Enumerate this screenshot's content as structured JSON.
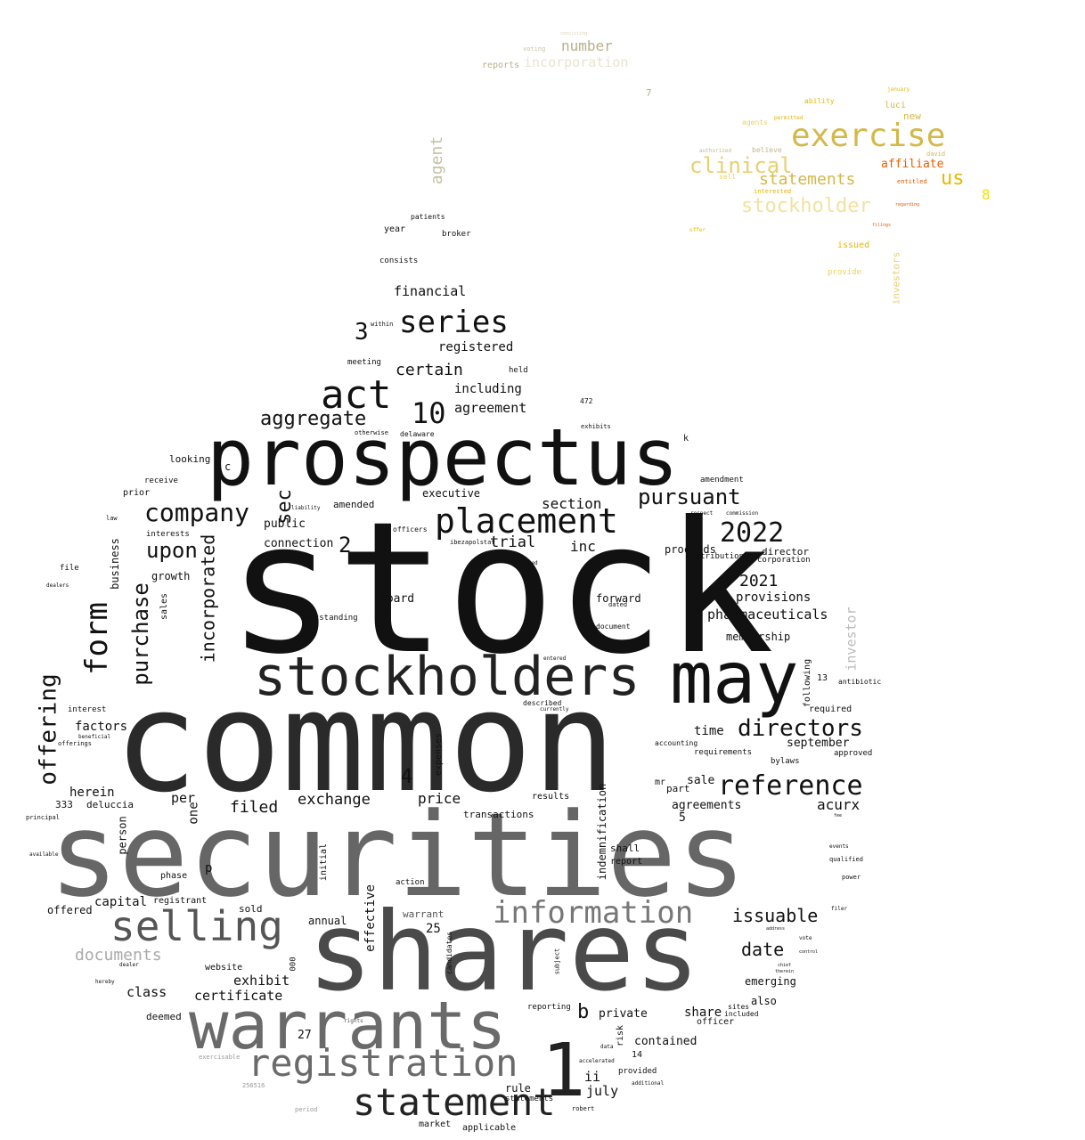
{
  "words": [
    {
      "text": "stock",
      "color": "#111111"
    },
    {
      "text": "common",
      "color": "#2a2a2a"
    },
    {
      "text": "securities",
      "color": "#666666"
    },
    {
      "text": "shares",
      "color": "#4a4a4a"
    },
    {
      "text": "prospectus",
      "color": "#111111"
    },
    {
      "text": "stockholders",
      "color": "#222222"
    },
    {
      "text": "may",
      "color": "#111111"
    },
    {
      "text": "warrants",
      "color": "#6a6a6a"
    },
    {
      "text": "placement",
      "color": "#111111"
    },
    {
      "text": "registration",
      "color": "#6a6a6a"
    },
    {
      "text": "statement",
      "color": "#222222"
    },
    {
      "text": "1",
      "color": "#222222"
    },
    {
      "text": "selling",
      "color": "#555555"
    },
    {
      "text": "information",
      "color": "#777777"
    },
    {
      "text": "reference",
      "color": "#111111"
    },
    {
      "text": "act",
      "color": "#111111"
    },
    {
      "text": "series",
      "color": "#111111"
    },
    {
      "text": "company",
      "color": "#111111"
    },
    {
      "text": "directors",
      "color": "#111111"
    },
    {
      "text": "form",
      "color": "#111111"
    },
    {
      "text": "2022",
      "color": "#111111"
    },
    {
      "text": "pursuant",
      "color": "#111111"
    },
    {
      "text": "10",
      "color": "#111111"
    },
    {
      "text": "aggregate",
      "color": "#111111"
    },
    {
      "text": "upon",
      "color": "#111111"
    },
    {
      "text": "purchase",
      "color": "#111111"
    },
    {
      "text": "offering",
      "color": "#111111"
    },
    {
      "text": "incorporated",
      "color": "#111111"
    },
    {
      "text": "sec",
      "color": "#111111"
    },
    {
      "text": "exercise",
      "color": "#d4b84a"
    },
    {
      "text": "clinical",
      "color": "#e8d070"
    },
    {
      "text": "statements",
      "color": "#d4b84a"
    },
    {
      "text": "stockholder",
      "color": "#f2e2a0"
    },
    {
      "text": "us",
      "color": "#e6b800"
    },
    {
      "text": "affiliate",
      "color": "#e65c00"
    },
    {
      "text": "number",
      "color": "#b8b088"
    },
    {
      "text": "incorporation",
      "color": "#e8e4d2"
    },
    {
      "text": "agent",
      "color": "#c4c2a0"
    },
    {
      "text": "documents",
      "color": "#aaaaaa"
    },
    {
      "text": "issuable",
      "color": "#111111"
    },
    {
      "text": "date",
      "color": "#111111"
    },
    {
      "text": "2021",
      "color": "#111111"
    },
    {
      "text": "exchange",
      "color": "#111111"
    },
    {
      "text": "filed",
      "color": "#111111"
    },
    {
      "text": "certain",
      "color": "#111111"
    },
    {
      "text": "financial",
      "color": "#111111"
    },
    {
      "text": "3",
      "color": "#111111"
    },
    {
      "text": "2",
      "color": "#111111"
    },
    {
      "text": "4",
      "color": "#111111"
    },
    {
      "text": "b",
      "color": "#111111"
    },
    {
      "text": "8",
      "color": "#f5e000"
    },
    {
      "text": "acurx",
      "color": "#111111"
    },
    {
      "text": "trial",
      "color": "#111111"
    },
    {
      "text": "pharmaceuticals",
      "color": "#111111"
    },
    {
      "text": "provisions",
      "color": "#111111"
    },
    {
      "text": "section",
      "color": "#111111"
    },
    {
      "text": "inc",
      "color": "#111111"
    },
    {
      "text": "agreement",
      "color": "#111111"
    },
    {
      "text": "including",
      "color": "#111111"
    },
    {
      "text": "registered",
      "color": "#111111"
    },
    {
      "text": "price",
      "color": "#111111"
    },
    {
      "text": "exhibit",
      "color": "#111111"
    },
    {
      "text": "certificate",
      "color": "#111111"
    },
    {
      "text": "capital",
      "color": "#111111"
    },
    {
      "text": "class",
      "color": "#111111"
    },
    {
      "text": "factors",
      "color": "#111111"
    },
    {
      "text": "herein",
      "color": "#111111"
    },
    {
      "text": "per",
      "color": "#111111"
    },
    {
      "text": "agreements",
      "color": "#111111"
    },
    {
      "text": "sale",
      "color": "#111111"
    },
    {
      "text": "time",
      "color": "#111111"
    },
    {
      "text": "september",
      "color": "#111111"
    },
    {
      "text": "membership",
      "color": "#111111"
    },
    {
      "text": "july",
      "color": "#111111"
    },
    {
      "text": "ii",
      "color": "#111111"
    },
    {
      "text": "share",
      "color": "#111111"
    },
    {
      "text": "contained",
      "color": "#111111"
    },
    {
      "text": "private",
      "color": "#111111"
    },
    {
      "text": "emerging",
      "color": "#111111"
    },
    {
      "text": "also",
      "color": "#111111"
    },
    {
      "text": "board",
      "color": "#111111"
    },
    {
      "text": "forward",
      "color": "#111111"
    },
    {
      "text": "executive",
      "color": "#111111"
    },
    {
      "text": "connection",
      "color": "#111111"
    },
    {
      "text": "public",
      "color": "#111111"
    },
    {
      "text": "amended",
      "color": "#111111"
    },
    {
      "text": "proceeds",
      "color": "#111111"
    },
    {
      "text": "director",
      "color": "#111111"
    },
    {
      "text": "distribution",
      "color": "#111111"
    },
    {
      "text": "corporation",
      "color": "#111111"
    },
    {
      "text": "amendment",
      "color": "#111111"
    },
    {
      "text": "growth",
      "color": "#111111"
    },
    {
      "text": "business",
      "color": "#111111"
    },
    {
      "text": "sales",
      "color": "#111111"
    },
    {
      "text": "one",
      "color": "#111111"
    },
    {
      "text": "deluccia",
      "color": "#111111"
    },
    {
      "text": "333",
      "color": "#111111"
    },
    {
      "text": "person",
      "color": "#111111"
    },
    {
      "text": "registrant",
      "color": "#111111"
    },
    {
      "text": "offered",
      "color": "#111111"
    },
    {
      "text": "phase",
      "color": "#111111"
    },
    {
      "text": "sold",
      "color": "#111111"
    },
    {
      "text": "website",
      "color": "#111111"
    },
    {
      "text": "annual",
      "color": "#111111"
    },
    {
      "text": "deemed",
      "color": "#111111"
    },
    {
      "text": "effective",
      "color": "#111111"
    },
    {
      "text": "initial",
      "color": "#111111"
    },
    {
      "text": "25",
      "color": "#111111"
    },
    {
      "text": "warrant",
      "color": "#555555"
    },
    {
      "text": "27",
      "color": "#111111"
    },
    {
      "text": "rule",
      "color": "#111111"
    },
    {
      "text": "statements",
      "color": "#111111"
    },
    {
      "text": "transactions",
      "color": "#111111"
    },
    {
      "text": "results",
      "color": "#111111"
    },
    {
      "text": "expenses",
      "color": "#111111"
    },
    {
      "text": "indemnification",
      "color": "#111111"
    },
    {
      "text": "shall",
      "color": "#111111"
    },
    {
      "text": "report",
      "color": "#111111"
    },
    {
      "text": "market",
      "color": "#111111"
    },
    {
      "text": "applicable",
      "color": "#111111"
    },
    {
      "text": "reporting",
      "color": "#111111"
    },
    {
      "text": "provided",
      "color": "#111111"
    },
    {
      "text": "14",
      "color": "#111111"
    },
    {
      "text": "risk",
      "color": "#111111"
    },
    {
      "text": "mr",
      "color": "#111111"
    },
    {
      "text": "part",
      "color": "#111111"
    },
    {
      "text": "5",
      "color": "#111111"
    },
    {
      "text": "investor",
      "color": "#bbbbbb"
    },
    {
      "text": "following",
      "color": "#111111"
    },
    {
      "text": "required",
      "color": "#111111"
    },
    {
      "text": "approved",
      "color": "#111111"
    },
    {
      "text": "bylaws",
      "color": "#111111"
    },
    {
      "text": "requirements",
      "color": "#111111"
    },
    {
      "text": "accounting",
      "color": "#111111"
    },
    {
      "text": "13",
      "color": "#111111"
    },
    {
      "text": "antibiotic",
      "color": "#111111"
    },
    {
      "text": "officer",
      "color": "#111111"
    },
    {
      "text": "sites",
      "color": "#111111"
    },
    {
      "text": "included",
      "color": "#111111"
    },
    {
      "text": "interest",
      "color": "#111111"
    },
    {
      "text": "offerings",
      "color": "#111111"
    },
    {
      "text": "beneficial",
      "color": "#111111"
    },
    {
      "text": "interests",
      "color": "#111111"
    },
    {
      "text": "receive",
      "color": "#111111"
    },
    {
      "text": "prior",
      "color": "#111111"
    },
    {
      "text": "looking",
      "color": "#111111"
    },
    {
      "text": "file",
      "color": "#111111"
    },
    {
      "text": "law",
      "color": "#111111"
    },
    {
      "text": "dealers",
      "color": "#111111"
    },
    {
      "text": "outstanding",
      "color": "#111111"
    },
    {
      "text": "meeting",
      "color": "#111111"
    },
    {
      "text": "within",
      "color": "#111111"
    },
    {
      "text": "held",
      "color": "#111111"
    },
    {
      "text": "consists",
      "color": "#111111"
    },
    {
      "text": "year",
      "color": "#111111"
    },
    {
      "text": "broker",
      "color": "#111111"
    },
    {
      "text": "patients",
      "color": "#111111"
    },
    {
      "text": "delaware",
      "color": "#111111"
    },
    {
      "text": "otherwise",
      "color": "#111111"
    },
    {
      "text": "exhibits",
      "color": "#111111"
    },
    {
      "text": "472",
      "color": "#111111"
    },
    {
      "text": "k",
      "color": "#111111"
    },
    {
      "text": "c",
      "color": "#111111"
    },
    {
      "text": "p",
      "color": "#111111"
    },
    {
      "text": "officers",
      "color": "#111111"
    },
    {
      "text": "liability",
      "color": "#111111"
    },
    {
      "text": "ibezapolstat",
      "color": "#111111"
    },
    {
      "text": "dated",
      "color": "#111111"
    },
    {
      "text": "document",
      "color": "#111111"
    },
    {
      "text": "candidates",
      "color": "#111111"
    },
    {
      "text": "subject",
      "color": "#111111"
    },
    {
      "text": "action",
      "color": "#111111"
    },
    {
      "text": "000",
      "color": "#111111"
    },
    {
      "text": "commission",
      "color": "#111111"
    },
    {
      "text": "respect",
      "color": "#111111"
    },
    {
      "text": "listed",
      "color": "#111111"
    },
    {
      "text": "described",
      "color": "#111111"
    },
    {
      "text": "currently",
      "color": "#111111"
    },
    {
      "text": "entered",
      "color": "#111111"
    },
    {
      "text": "accelerated",
      "color": "#111111"
    },
    {
      "text": "data",
      "color": "#111111"
    },
    {
      "text": "robert",
      "color": "#111111"
    },
    {
      "text": "additional",
      "color": "#111111"
    },
    {
      "text": "dealer",
      "color": "#111111"
    },
    {
      "text": "hereby",
      "color": "#111111"
    },
    {
      "text": "available",
      "color": "#111111"
    },
    {
      "text": "principal",
      "color": "#111111"
    },
    {
      "text": "qualified",
      "color": "#111111"
    },
    {
      "text": "power",
      "color": "#111111"
    },
    {
      "text": "events",
      "color": "#111111"
    },
    {
      "text": "filer",
      "color": "#111111"
    },
    {
      "text": "vote",
      "color": "#111111"
    },
    {
      "text": "address",
      "color": "#111111"
    },
    {
      "text": "chief",
      "color": "#111111"
    },
    {
      "text": "therein",
      "color": "#111111"
    },
    {
      "text": "control",
      "color": "#111111"
    },
    {
      "text": "fee",
      "color": "#111111"
    },
    {
      "text": "exercisable",
      "color": "#999999"
    },
    {
      "text": "256516",
      "color": "#999999"
    },
    {
      "text": "period",
      "color": "#999999"
    },
    {
      "text": "rights",
      "color": "#555555"
    },
    {
      "text": "reports",
      "color": "#b8b088"
    },
    {
      "text": "voting",
      "color": "#c8c4a4"
    },
    {
      "text": "consisting",
      "color": "#d8d4b8"
    },
    {
      "text": "7",
      "color": "#b8b088"
    },
    {
      "text": "agents",
      "color": "#e8d070"
    },
    {
      "text": "permitted",
      "color": "#e8b000"
    },
    {
      "text": "ability",
      "color": "#e6b800"
    },
    {
      "text": "luci",
      "color": "#d4b84a"
    },
    {
      "text": "new",
      "color": "#d4b84a"
    },
    {
      "text": "january",
      "color": "#e6b800"
    },
    {
      "text": "david",
      "color": "#d4b84a"
    },
    {
      "text": "entitled",
      "color": "#e65c00"
    },
    {
      "text": "believe",
      "color": "#c4b888"
    },
    {
      "text": "authorized",
      "color": "#c4b888"
    },
    {
      "text": "sell",
      "color": "#e8d070"
    },
    {
      "text": "interested",
      "color": "#e8b000"
    },
    {
      "text": "issued",
      "color": "#e6b800"
    },
    {
      "text": "provide",
      "color": "#f0d050"
    },
    {
      "text": "investors",
      "color": "#e8d070"
    },
    {
      "text": "offer",
      "color": "#e6b800"
    },
    {
      "text": "filings",
      "color": "#e65c00"
    },
    {
      "text": "regarding",
      "color": "#e65c00"
    }
  ]
}
